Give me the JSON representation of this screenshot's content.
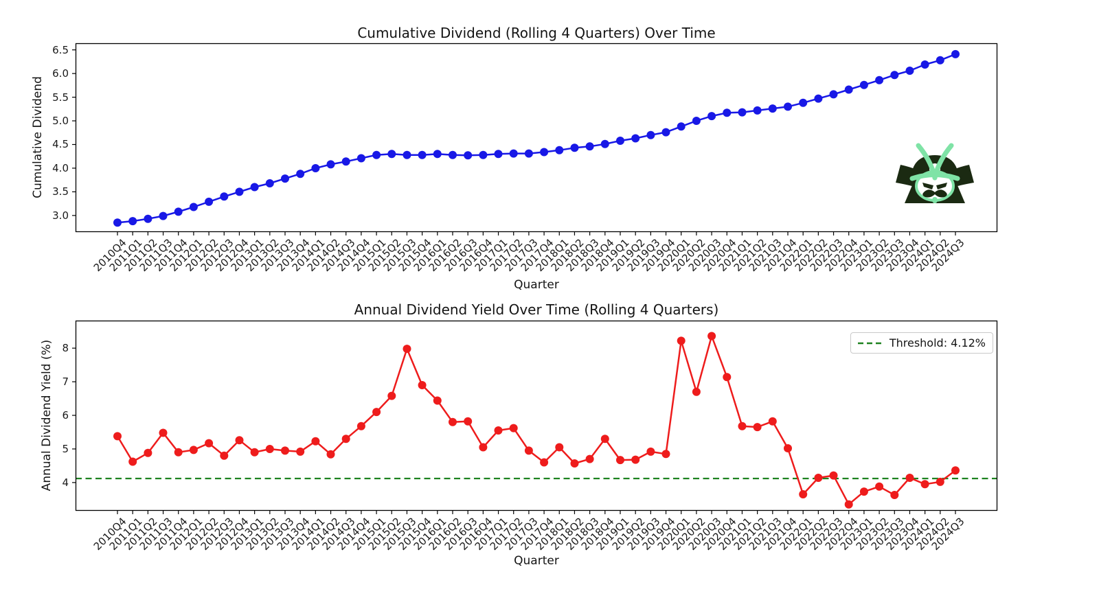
{
  "page": {
    "background": "#ffffff"
  },
  "logo": {
    "name": "samurai-helmet",
    "dark_color": "#1b2a12",
    "accent_color": "#7fe3a6",
    "face_color": "#ffffff"
  },
  "chart_data": [
    {
      "type": "line",
      "title": "Cumulative Dividend (Rolling 4 Quarters) Over Time",
      "xlabel": "Quarter",
      "ylabel": "Cumulative Dividend",
      "line_color": "#1818e6",
      "marker": "circle",
      "grid": false,
      "ylim": [
        2.65,
        6.64
      ],
      "yticks": [
        3.0,
        3.5,
        4.0,
        4.5,
        5.0,
        5.5,
        6.0,
        6.5
      ],
      "ytick_labels": [
        "3.0",
        "3.5",
        "4.0",
        "4.5",
        "5.0",
        "5.5",
        "6.0",
        "6.5"
      ],
      "categories": [
        "2010Q4",
        "2011Q1",
        "2011Q2",
        "2011Q3",
        "2011Q4",
        "2012Q1",
        "2012Q2",
        "2012Q3",
        "2012Q4",
        "2013Q1",
        "2013Q2",
        "2013Q3",
        "2013Q4",
        "2014Q1",
        "2014Q2",
        "2014Q3",
        "2014Q4",
        "2015Q1",
        "2015Q2",
        "2015Q3",
        "2015Q4",
        "2016Q1",
        "2016Q2",
        "2016Q3",
        "2016Q4",
        "2017Q1",
        "2017Q2",
        "2017Q3",
        "2017Q4",
        "2018Q1",
        "2018Q2",
        "2018Q3",
        "2018Q4",
        "2019Q1",
        "2019Q2",
        "2019Q3",
        "2019Q4",
        "2020Q1",
        "2020Q2",
        "2020Q3",
        "2020Q4",
        "2021Q1",
        "2021Q2",
        "2021Q3",
        "2021Q4",
        "2022Q1",
        "2022Q2",
        "2022Q3",
        "2022Q4",
        "2023Q1",
        "2023Q2",
        "2023Q3",
        "2023Q4",
        "2024Q1",
        "2024Q2",
        "2024Q3"
      ],
      "values": [
        2.85,
        2.88,
        2.93,
        2.99,
        3.08,
        3.18,
        3.29,
        3.4,
        3.5,
        3.6,
        3.68,
        3.78,
        3.88,
        4.0,
        4.08,
        4.14,
        4.21,
        4.28,
        4.3,
        4.28,
        4.28,
        4.3,
        4.28,
        4.27,
        4.28,
        4.3,
        4.31,
        4.31,
        4.34,
        4.38,
        4.43,
        4.46,
        4.51,
        4.58,
        4.63,
        4.7,
        4.76,
        4.88,
        5.0,
        5.1,
        5.17,
        5.18,
        5.22,
        5.26,
        5.3,
        5.38,
        5.47,
        5.56,
        5.66,
        5.76,
        5.86,
        5.97,
        6.06,
        6.19,
        6.28,
        6.41
      ],
      "threshold": null,
      "legend": null
    },
    {
      "type": "line",
      "title": "Annual Dividend Yield Over Time (Rolling 4 Quarters)",
      "xlabel": "Quarter",
      "ylabel": "Annual Dividend Yield (%)",
      "line_color": "#ee1c1c",
      "marker": "circle",
      "grid": false,
      "ylim": [
        3.16,
        8.82
      ],
      "yticks": [
        4,
        5,
        6,
        7,
        8
      ],
      "ytick_labels": [
        "4",
        "5",
        "6",
        "7",
        "8"
      ],
      "categories": [
        "2010Q4",
        "2011Q1",
        "2011Q2",
        "2011Q3",
        "2011Q4",
        "2012Q1",
        "2012Q2",
        "2012Q3",
        "2012Q4",
        "2013Q1",
        "2013Q2",
        "2013Q3",
        "2013Q4",
        "2014Q1",
        "2014Q2",
        "2014Q3",
        "2014Q4",
        "2015Q1",
        "2015Q2",
        "2015Q3",
        "2015Q4",
        "2016Q1",
        "2016Q2",
        "2016Q3",
        "2016Q4",
        "2017Q1",
        "2017Q2",
        "2017Q3",
        "2017Q4",
        "2018Q1",
        "2018Q2",
        "2018Q3",
        "2018Q4",
        "2019Q1",
        "2019Q2",
        "2019Q3",
        "2019Q4",
        "2020Q1",
        "2020Q2",
        "2020Q3",
        "2020Q4",
        "2021Q1",
        "2021Q2",
        "2021Q3",
        "2021Q4",
        "2022Q1",
        "2022Q2",
        "2022Q3",
        "2022Q4",
        "2023Q1",
        "2023Q2",
        "2023Q3",
        "2023Q4",
        "2024Q1",
        "2024Q2",
        "2024Q3"
      ],
      "values": [
        5.38,
        4.62,
        4.88,
        5.48,
        4.9,
        4.97,
        5.17,
        4.8,
        5.26,
        4.9,
        5.0,
        4.95,
        4.92,
        5.23,
        4.84,
        5.3,
        5.68,
        6.1,
        6.58,
        7.98,
        6.9,
        6.44,
        5.8,
        5.82,
        5.05,
        5.55,
        5.62,
        4.95,
        4.6,
        5.05,
        4.57,
        4.7,
        5.3,
        4.67,
        4.68,
        4.92,
        4.85,
        8.22,
        6.7,
        8.36,
        7.14,
        5.68,
        5.65,
        5.82,
        5.02,
        3.65,
        4.14,
        4.21,
        3.35,
        3.73,
        3.88,
        3.63,
        4.14,
        3.95,
        4.02,
        4.36
      ],
      "threshold": {
        "value": 4.12,
        "color": "#1e8220",
        "style": "dashed",
        "legend_label": "Threshold: 4.12%",
        "legend_position": "upper right"
      },
      "legend": {
        "visible": true
      }
    }
  ]
}
